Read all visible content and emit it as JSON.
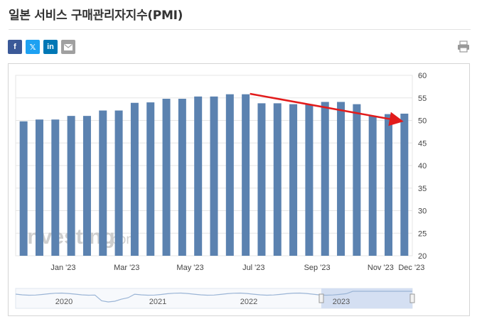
{
  "header": {
    "title": "일본 서비스 구매관리자지수(PMI)"
  },
  "share": {
    "facebook": "f",
    "twitter": "𝕏",
    "linkedin": "in"
  },
  "icons": {
    "facebook": "facebook-icon",
    "twitter": "twitter-icon",
    "linkedin": "linkedin-icon",
    "email": "email-icon",
    "print": "printer-icon"
  },
  "colors": {
    "bar": "#5b82b0",
    "arrow": "#e21b1b",
    "facebook": "#3b5998",
    "twitter": "#1da1f2",
    "linkedin": "#0077b5",
    "email": "#a0a0a0"
  },
  "watermark": {
    "text": "Investing",
    "suffix": ".com"
  },
  "chart_data": {
    "type": "bar",
    "title": "",
    "xlabel": "",
    "ylabel": "",
    "ylim": [
      20,
      60
    ],
    "yticks": [
      20,
      25,
      30,
      35,
      40,
      45,
      50,
      55,
      60
    ],
    "y_axis_side": "right",
    "grid": true,
    "xtick_labels": [
      "Jan '23",
      "Mar '23",
      "May '23",
      "Jul '23",
      "Sep '23",
      "Nov '23",
      "Dec '23"
    ],
    "values": [
      49.8,
      50.2,
      50.2,
      51.0,
      51.0,
      52.2,
      52.2,
      53.9,
      54.0,
      54.8,
      54.8,
      55.3,
      55.3,
      55.8,
      55.8,
      53.8,
      53.8,
      53.6,
      53.6,
      54.1,
      54.1,
      53.6,
      51.0,
      51.4,
      51.5
    ],
    "trend_arrow": {
      "from": 55.9,
      "to": 49.9,
      "color": "#e21b1b"
    },
    "navigator_years": [
      "2020",
      "2021",
      "2022",
      "2023"
    ]
  }
}
